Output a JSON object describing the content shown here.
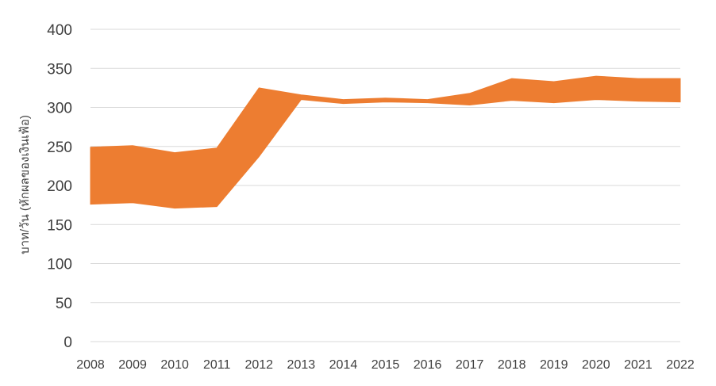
{
  "chart_data": {
    "type": "area",
    "categories": [
      "2008",
      "2009",
      "2010",
      "2011",
      "2012",
      "2013",
      "2014",
      "2015",
      "2016",
      "2017",
      "2018",
      "2019",
      "2020",
      "2021",
      "2022"
    ],
    "series": [
      {
        "values": [
          176,
          178,
          171,
          173,
          237,
          310,
          305,
          307,
          306,
          303,
          309,
          306,
          310,
          308,
          307
        ]
      },
      {
        "values": [
          249,
          251,
          242,
          248,
          325,
          316,
          310,
          312,
          310,
          318,
          337,
          333,
          340,
          337,
          337
        ]
      }
    ],
    "band_color": "#ED7D31",
    "xlabel": "",
    "ylabel": "บาท/วัน (หักผลของเงินเฟ้อ)",
    "ylim": [
      0,
      400
    ],
    "yticks": [
      0,
      50,
      100,
      150,
      200,
      250,
      300,
      350,
      400
    ],
    "grid": true,
    "legend": "none"
  }
}
